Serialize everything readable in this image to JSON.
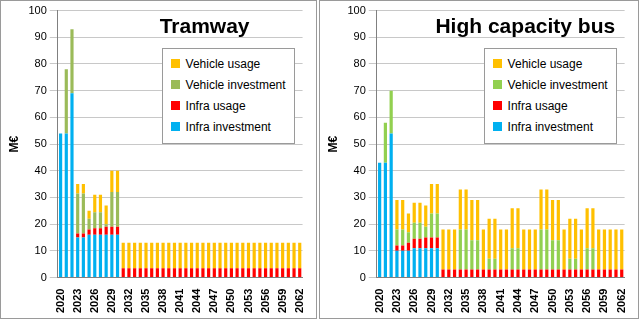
{
  "chart_data": [
    {
      "type": "bar",
      "title": "Tramway",
      "y_label": "M€",
      "stacked": true,
      "grid": true,
      "legend": "upper right",
      "ylim": [
        0,
        100
      ],
      "yticks": [
        0,
        10,
        20,
        30,
        40,
        50,
        60,
        70,
        80,
        90,
        100
      ],
      "categories": [
        "2020",
        null,
        null,
        "2023",
        null,
        null,
        "2026",
        null,
        null,
        "2029",
        null,
        null,
        "2032",
        null,
        null,
        "2035",
        null,
        null,
        "2038",
        null,
        null,
        "2041",
        null,
        null,
        "2044",
        null,
        null,
        "2047",
        null,
        null,
        "2050",
        null,
        null,
        "2053",
        null,
        null,
        "2056",
        null,
        null,
        "2059",
        null,
        null,
        "2062"
      ],
      "series": [
        {
          "name": "Infra investment",
          "color": "#00b0f0",
          "values": [
            54,
            54,
            69,
            15,
            15,
            16,
            16,
            16,
            16,
            16,
            16,
            0,
            0,
            0,
            0,
            0,
            0,
            0,
            0,
            0,
            0,
            0,
            0,
            0,
            0,
            0,
            0,
            0,
            0,
            0,
            0,
            0,
            0,
            0,
            0,
            0,
            0,
            0,
            0,
            0,
            0,
            0,
            0
          ]
        },
        {
          "name": "Infra usage",
          "color": "#ff0000",
          "values": [
            0,
            0,
            0,
            1.5,
            1.5,
            2,
            2.5,
            2.5,
            3,
            3,
            3,
            3.5,
            3.5,
            3.5,
            3.5,
            3.5,
            3.5,
            3.5,
            3.5,
            3.5,
            3.5,
            3.5,
            3.5,
            3.5,
            3.5,
            3.5,
            3.5,
            3.5,
            3.5,
            3.5,
            3.5,
            3.5,
            3.5,
            3.5,
            3.5,
            3.5,
            3.5,
            3.5,
            3.5,
            3.5,
            3.5,
            3.5,
            3.5
          ]
        },
        {
          "name": "Vehicle investment",
          "color": "#9bbb59",
          "values": [
            0,
            24,
            24,
            15,
            15,
            4,
            6,
            6,
            1,
            13,
            13,
            0,
            0,
            0,
            0,
            0,
            0,
            0,
            0,
            0,
            0,
            0,
            0,
            0,
            0,
            0,
            0,
            0,
            0,
            0,
            0,
            0,
            0,
            0,
            0,
            0,
            0,
            0,
            0,
            0,
            0,
            0,
            0
          ]
        },
        {
          "name": "Vehicle usage",
          "color": "#ffc000",
          "values": [
            0,
            0,
            0,
            3.5,
            3.5,
            3,
            6.5,
            6.5,
            7,
            8,
            8,
            9.5,
            9.5,
            9.5,
            9.5,
            9.5,
            9.5,
            9.5,
            9.5,
            9.5,
            9.5,
            9.5,
            9.5,
            9.5,
            9.5,
            9.5,
            9.5,
            9.5,
            9.5,
            9.5,
            9.5,
            9.5,
            9.5,
            9.5,
            9.5,
            9.5,
            9.5,
            9.5,
            9.5,
            9.5,
            9.5,
            9.5,
            9.5
          ]
        }
      ]
    },
    {
      "type": "bar",
      "title": "High capacity bus",
      "y_label": "M€",
      "stacked": true,
      "grid": true,
      "legend": "upper right",
      "ylim": [
        0,
        100
      ],
      "yticks": [
        0,
        10,
        20,
        30,
        40,
        50,
        60,
        70,
        80,
        90,
        100
      ],
      "categories": [
        "2020",
        null,
        null,
        "2023",
        null,
        null,
        "2026",
        null,
        null,
        "2029",
        null,
        null,
        "2032",
        null,
        null,
        "2035",
        null,
        null,
        "2038",
        null,
        null,
        "2041",
        null,
        null,
        "2044",
        null,
        null,
        "2047",
        null,
        null,
        "2050",
        null,
        null,
        "2053",
        null,
        null,
        "2056",
        null,
        null,
        "2059",
        null,
        null,
        "2062"
      ],
      "series": [
        {
          "name": "Infra investment",
          "color": "#00b0f0",
          "values": [
            43,
            43,
            54,
            10,
            10,
            10,
            11,
            11,
            11,
            11,
            11,
            0,
            0,
            0,
            0,
            0,
            0,
            0,
            0,
            0,
            0,
            0,
            0,
            0,
            0,
            0,
            0,
            0,
            0,
            0,
            0,
            0,
            0,
            0,
            0,
            0,
            0,
            0,
            0,
            0,
            0,
            0,
            0
          ]
        },
        {
          "name": "Infra usage",
          "color": "#ff0000",
          "values": [
            0,
            0,
            0,
            2,
            2,
            3,
            3.5,
            3.5,
            4,
            4,
            4,
            3,
            3,
            3,
            3,
            3,
            3,
            3,
            3,
            3,
            3,
            3,
            3,
            3,
            3,
            3,
            3,
            3,
            3,
            3,
            3,
            3,
            3,
            3,
            3,
            3,
            3,
            3,
            3,
            3,
            3,
            3,
            3
          ]
        },
        {
          "name": "Vehicle investment",
          "color": "#92d050",
          "values": [
            0,
            15,
            16,
            6,
            6,
            4,
            6,
            6,
            4,
            9,
            9,
            0,
            0,
            0,
            15,
            15,
            11,
            11,
            0,
            4,
            4,
            0,
            0,
            8,
            8,
            0,
            0,
            0,
            15,
            15,
            11,
            11,
            0,
            4,
            4,
            0,
            8,
            8,
            0,
            0,
            0,
            0,
            0
          ]
        },
        {
          "name": "Vehicle usage",
          "color": "#ffc000",
          "values": [
            0,
            0,
            0,
            11,
            11,
            7,
            7.5,
            7.5,
            8,
            11,
            11,
            15,
            15,
            15,
            15,
            15,
            15,
            15,
            15,
            15,
            15,
            15,
            15,
            15,
            15,
            15,
            15,
            15,
            15,
            15,
            15,
            15,
            15,
            15,
            15,
            15,
            15,
            15,
            15,
            15,
            15,
            15,
            15
          ]
        }
      ]
    }
  ]
}
